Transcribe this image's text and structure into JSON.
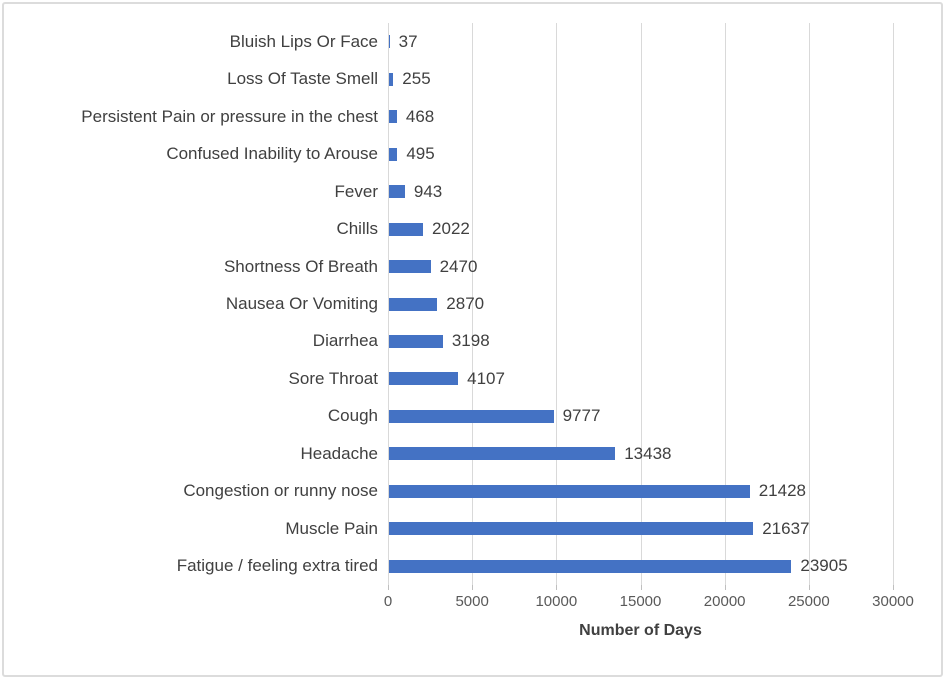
{
  "chart_data": {
    "type": "bar",
    "orientation": "horizontal",
    "title": "",
    "xlabel": "Number of Days",
    "ylabel": "",
    "xlim": [
      0,
      30000
    ],
    "x_ticks": [
      0,
      5000,
      10000,
      15000,
      20000,
      25000,
      30000
    ],
    "grid": "vertical-major",
    "legend": "none",
    "categories_top_to_bottom": [
      "Bluish Lips Or Face",
      "Loss Of Taste Smell",
      "Persistent Pain or pressure in the chest",
      "Confused Inability to Arouse",
      "Fever",
      "Chills",
      "Shortness Of Breath",
      "Nausea Or Vomiting",
      "Diarrhea",
      "Sore Throat",
      "Cough",
      "Headache",
      "Congestion or runny nose",
      "Muscle Pain",
      "Fatigue / feeling extra tired"
    ],
    "values": [
      37,
      255,
      468,
      495,
      943,
      2022,
      2470,
      2870,
      3198,
      4107,
      9777,
      13438,
      21428,
      21637,
      23905
    ],
    "data_labels_shown": true,
    "colors": {
      "bar": "#4472C4",
      "gridline": "#d9d9d9",
      "tick_mark": "#bfbfbf",
      "category_label": "#404040",
      "value_label": "#404040",
      "axis_tick_label": "#595959",
      "axis_title": "#404040",
      "frame_border": "#dcdcdc",
      "background": "#ffffff"
    }
  }
}
